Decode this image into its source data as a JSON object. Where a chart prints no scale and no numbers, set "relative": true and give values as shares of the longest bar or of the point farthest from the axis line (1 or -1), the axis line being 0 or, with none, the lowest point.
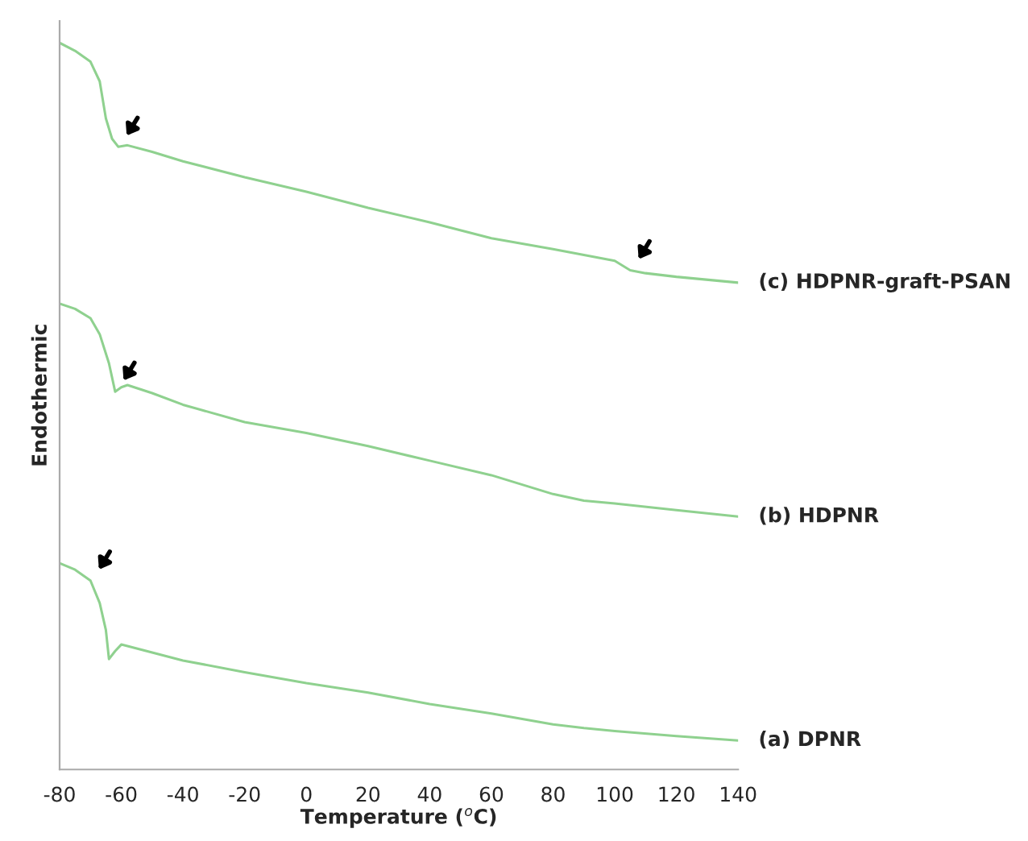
{
  "chart_data": {
    "type": "line",
    "relative": true,
    "xlabel": "Temperature ($^{o}$C)",
    "ylabel": "Endothermic",
    "xlim": [
      -80,
      140
    ],
    "xticks": [
      -80,
      -60,
      -40,
      -20,
      0,
      20,
      40,
      60,
      80,
      100,
      120,
      140
    ],
    "grid": false,
    "legend": false,
    "marker": "none",
    "line_style": "solid",
    "series": [
      {
        "name": "(c) HDPNR-graft-PSAN",
        "color": "#8fd18f",
        "x": [
          -80,
          -75,
          -70,
          -67,
          -65,
          -63,
          -61,
          -58,
          -50,
          -40,
          -20,
          0,
          20,
          40,
          60,
          80,
          100,
          105,
          110,
          120,
          140
        ],
        "values": [
          1.0,
          0.989,
          0.974,
          0.947,
          0.896,
          0.868,
          0.857,
          0.859,
          0.85,
          0.837,
          0.815,
          0.795,
          0.773,
          0.753,
          0.731,
          0.716,
          0.7,
          0.687,
          0.683,
          0.678,
          0.67
        ]
      },
      {
        "name": "(b) HDPNR",
        "color": "#8fd18f",
        "x": [
          -80,
          -75,
          -70,
          -67,
          -64,
          -62,
          -60,
          -58,
          -50,
          -40,
          -20,
          0,
          20,
          40,
          60,
          80,
          90,
          100,
          120,
          140
        ],
        "values": [
          0.641,
          0.634,
          0.621,
          0.599,
          0.559,
          0.52,
          0.526,
          0.529,
          0.518,
          0.502,
          0.478,
          0.463,
          0.445,
          0.425,
          0.405,
          0.379,
          0.37,
          0.366,
          0.357,
          0.348
        ]
      },
      {
        "name": "(a) DPNR",
        "color": "#8fd18f",
        "x": [
          -80,
          -75,
          -70,
          -67,
          -65,
          -64,
          -62,
          -60,
          -50,
          -40,
          -20,
          0,
          20,
          40,
          60,
          80,
          90,
          100,
          120,
          140
        ],
        "values": [
          0.284,
          0.275,
          0.26,
          0.229,
          0.192,
          0.152,
          0.163,
          0.172,
          0.161,
          0.15,
          0.134,
          0.119,
          0.106,
          0.09,
          0.077,
          0.062,
          0.057,
          0.053,
          0.046,
          0.04
        ]
      }
    ]
  }
}
